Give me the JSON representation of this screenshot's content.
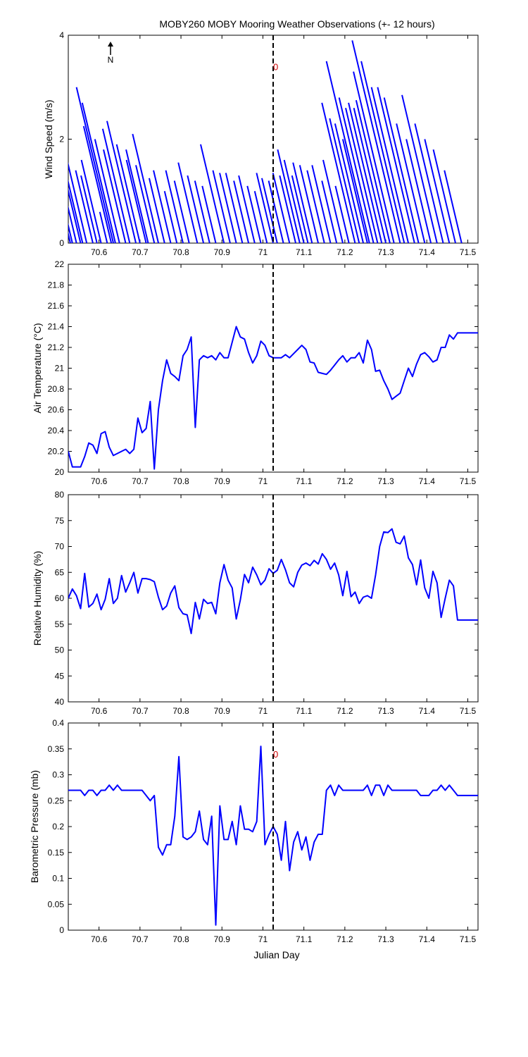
{
  "figure": {
    "title": "MOBY260 MOBY Mooring Weather Observations (+- 12 hours)",
    "xlabel": "Julian Day",
    "center_day": 71.025,
    "marker_label": "0",
    "north_label": "N",
    "colors": {
      "line": "#0000ff",
      "axis": "#000000",
      "marker": "#000000",
      "marker_label": "#cc0000"
    }
  },
  "chart_data": [
    {
      "type": "line",
      "subtype": "wind-vector-sticks",
      "ylabel": "Wind Speed (m/s)",
      "xlim": [
        70.525,
        71.525
      ],
      "ylim": [
        0,
        4
      ],
      "xticks": [
        "70.6",
        "70.7",
        "70.8",
        "70.9",
        "71",
        "71.1",
        "71.2",
        "71.3",
        "71.4",
        "71.5"
      ],
      "yticks": [
        "0",
        "2",
        "4"
      ],
      "show_marker_label": true,
      "marker_label_value": 3.4,
      "stick_dx_days": 0.075,
      "sticks": [
        {
          "x": 70.53,
          "speed": 0.9
        },
        {
          "x": 70.535,
          "speed": 0.5
        },
        {
          "x": 70.545,
          "speed": 1.2
        },
        {
          "x": 70.555,
          "speed": 1.8
        },
        {
          "x": 70.56,
          "speed": 1.75
        },
        {
          "x": 70.57,
          "speed": 1.78
        },
        {
          "x": 70.585,
          "speed": 1.4
        },
        {
          "x": 70.595,
          "speed": 1.3
        },
        {
          "x": 70.605,
          "speed": 1.6
        },
        {
          "x": 70.62,
          "speed": 0.6
        },
        {
          "x": 70.63,
          "speed": 2.25
        },
        {
          "x": 70.635,
          "speed": 3.0
        },
        {
          "x": 70.64,
          "speed": 2.7
        },
        {
          "x": 70.65,
          "speed": 2.0
        },
        {
          "x": 70.665,
          "speed": 1.8
        },
        {
          "x": 70.675,
          "speed": 2.2
        },
        {
          "x": 70.69,
          "speed": 2.35
        },
        {
          "x": 70.7,
          "speed": 1.9
        },
        {
          "x": 70.715,
          "speed": 1.6
        },
        {
          "x": 70.72,
          "speed": 1.8
        },
        {
          "x": 70.735,
          "speed": 1.5
        },
        {
          "x": 70.745,
          "speed": 2.1
        },
        {
          "x": 70.76,
          "speed": 1.25
        },
        {
          "x": 70.775,
          "speed": 1.4
        },
        {
          "x": 70.79,
          "speed": 1.0
        },
        {
          "x": 70.805,
          "speed": 1.4
        },
        {
          "x": 70.82,
          "speed": 1.2
        },
        {
          "x": 70.84,
          "speed": 1.55
        },
        {
          "x": 70.855,
          "speed": 1.3
        },
        {
          "x": 70.87,
          "speed": 1.2
        },
        {
          "x": 70.885,
          "speed": 1.1
        },
        {
          "x": 70.905,
          "speed": 1.9
        },
        {
          "x": 70.92,
          "speed": 1.4
        },
        {
          "x": 70.935,
          "speed": 1.35
        },
        {
          "x": 70.95,
          "speed": 1.35
        },
        {
          "x": 70.965,
          "speed": 1.2
        },
        {
          "x": 70.98,
          "speed": 1.3
        },
        {
          "x": 70.995,
          "speed": 1.1
        },
        {
          "x": 71.01,
          "speed": 1.0
        },
        {
          "x": 71.025,
          "speed": 1.35
        },
        {
          "x": 71.035,
          "speed": 1.25
        },
        {
          "x": 71.05,
          "speed": 1.2
        },
        {
          "x": 71.065,
          "speed": 1.35
        },
        {
          "x": 71.08,
          "speed": 1.3
        },
        {
          "x": 71.09,
          "speed": 1.8
        },
        {
          "x": 71.1,
          "speed": 1.6
        },
        {
          "x": 71.11,
          "speed": 1.3
        },
        {
          "x": 71.12,
          "speed": 1.55
        },
        {
          "x": 71.135,
          "speed": 1.5
        },
        {
          "x": 71.15,
          "speed": 1.4
        },
        {
          "x": 71.165,
          "speed": 1.5
        },
        {
          "x": 71.18,
          "speed": 1.2
        },
        {
          "x": 71.195,
          "speed": 1.6
        },
        {
          "x": 71.21,
          "speed": 1.1
        },
        {
          "x": 71.225,
          "speed": 2.7
        },
        {
          "x": 71.235,
          "speed": 2.4
        },
        {
          "x": 71.245,
          "speed": 2.3
        },
        {
          "x": 71.255,
          "speed": 2.0
        },
        {
          "x": 71.26,
          "speed": 3.5
        },
        {
          "x": 71.27,
          "speed": 2.8
        },
        {
          "x": 71.28,
          "speed": 2.6
        },
        {
          "x": 71.29,
          "speed": 2.7
        },
        {
          "x": 71.3,
          "speed": 2.6
        },
        {
          "x": 71.31,
          "speed": 2.75
        },
        {
          "x": 71.32,
          "speed": 3.3
        },
        {
          "x": 71.335,
          "speed": 3.9
        },
        {
          "x": 71.345,
          "speed": 3.5
        },
        {
          "x": 71.355,
          "speed": 3.0
        },
        {
          "x": 71.37,
          "speed": 3.0
        },
        {
          "x": 71.38,
          "speed": 2.8
        },
        {
          "x": 71.395,
          "speed": 2.3
        },
        {
          "x": 71.41,
          "speed": 2.0
        },
        {
          "x": 71.425,
          "speed": 2.85
        },
        {
          "x": 71.44,
          "speed": 2.3
        },
        {
          "x": 71.455,
          "speed": 2.0
        },
        {
          "x": 71.47,
          "speed": 1.8
        },
        {
          "x": 71.485,
          "speed": 1.4
        }
      ]
    },
    {
      "type": "line",
      "ylabel": "Air Temperature (°C)",
      "xlim": [
        70.525,
        71.525
      ],
      "ylim": [
        20,
        22
      ],
      "xticks": [
        "70.6",
        "70.7",
        "70.8",
        "70.9",
        "71",
        "71.1",
        "71.2",
        "71.3",
        "71.4",
        "71.5"
      ],
      "yticks": [
        "20",
        "20.2",
        "20.4",
        "20.6",
        "20.8",
        "21",
        "21.2",
        "21.4",
        "21.6",
        "21.8",
        "22"
      ],
      "show_marker_label": false,
      "x": [
        70.525,
        70.535,
        70.545,
        70.555,
        70.565,
        70.575,
        70.585,
        70.595,
        70.605,
        70.615,
        70.625,
        70.635,
        70.645,
        70.655,
        70.665,
        70.675,
        70.685,
        70.695,
        70.705,
        70.715,
        70.725,
        70.735,
        70.745,
        70.755,
        70.765,
        70.775,
        70.785,
        70.795,
        70.805,
        70.815,
        70.825,
        70.835,
        70.845,
        70.855,
        70.865,
        70.875,
        70.885,
        70.895,
        70.905,
        70.915,
        70.925,
        70.935,
        70.945,
        70.955,
        70.965,
        70.975,
        70.985,
        70.995,
        71.005,
        71.015,
        71.025,
        71.035,
        71.045,
        71.055,
        71.065,
        71.075,
        71.085,
        71.095,
        71.105,
        71.115,
        71.125,
        71.135,
        71.145,
        71.155,
        71.165,
        71.175,
        71.185,
        71.195,
        71.205,
        71.215,
        71.225,
        71.235,
        71.245,
        71.255,
        71.265,
        71.275,
        71.285,
        71.295,
        71.305,
        71.315,
        71.325,
        71.335,
        71.345,
        71.355,
        71.365,
        71.375,
        71.385,
        71.395,
        71.405,
        71.415,
        71.425,
        71.435,
        71.445,
        71.455,
        71.465,
        71.475,
        71.485,
        71.495,
        71.505,
        71.515,
        71.525
      ],
      "y": [
        20.2,
        20.05,
        20.05,
        20.05,
        20.15,
        20.28,
        20.26,
        20.18,
        20.37,
        20.39,
        20.24,
        20.16,
        20.18,
        20.2,
        20.22,
        20.18,
        20.22,
        20.52,
        20.38,
        20.42,
        20.68,
        20.03,
        20.6,
        20.88,
        21.08,
        20.95,
        20.92,
        20.88,
        21.12,
        21.18,
        21.3,
        20.43,
        21.08,
        21.12,
        21.1,
        21.12,
        21.08,
        21.15,
        21.1,
        21.1,
        21.25,
        21.4,
        21.3,
        21.28,
        21.15,
        21.05,
        21.12,
        21.26,
        21.22,
        21.12,
        21.1,
        21.1,
        21.1,
        21.13,
        21.1,
        21.14,
        21.18,
        21.22,
        21.18,
        21.06,
        21.05,
        20.96,
        20.95,
        20.94,
        20.98,
        21.03,
        21.08,
        21.12,
        21.06,
        21.1,
        21.1,
        21.15,
        21.05,
        21.27,
        21.18,
        20.97,
        20.98,
        20.88,
        20.8,
        20.7,
        20.73,
        20.76,
        20.88,
        21.0,
        20.92,
        21.04,
        21.13,
        21.15,
        21.11,
        21.06,
        21.08,
        21.2,
        21.2,
        21.32,
        21.28,
        21.34,
        21.34,
        21.34,
        21.34,
        21.34,
        21.34
      ]
    },
    {
      "type": "line",
      "ylabel": "Relative Humidity (%)",
      "xlim": [
        70.525,
        71.525
      ],
      "ylim": [
        40,
        80
      ],
      "xticks": [
        "70.6",
        "70.7",
        "70.8",
        "70.9",
        "71",
        "71.1",
        "71.2",
        "71.3",
        "71.4",
        "71.5"
      ],
      "yticks": [
        "40",
        "45",
        "50",
        "55",
        "60",
        "65",
        "70",
        "75",
        "80"
      ],
      "show_marker_label": false,
      "x": [
        70.525,
        70.535,
        70.545,
        70.555,
        70.565,
        70.575,
        70.585,
        70.595,
        70.605,
        70.615,
        70.625,
        70.635,
        70.645,
        70.655,
        70.665,
        70.675,
        70.685,
        70.695,
        70.705,
        70.715,
        70.725,
        70.735,
        70.745,
        70.755,
        70.765,
        70.775,
        70.785,
        70.795,
        70.805,
        70.815,
        70.825,
        70.835,
        70.845,
        70.855,
        70.865,
        70.875,
        70.885,
        70.895,
        70.905,
        70.915,
        70.925,
        70.935,
        70.945,
        70.955,
        70.965,
        70.975,
        70.985,
        70.995,
        71.005,
        71.015,
        71.025,
        71.035,
        71.045,
        71.055,
        71.065,
        71.075,
        71.085,
        71.095,
        71.105,
        71.115,
        71.125,
        71.135,
        71.145,
        71.155,
        71.165,
        71.175,
        71.185,
        71.195,
        71.205,
        71.215,
        71.225,
        71.235,
        71.245,
        71.255,
        71.265,
        71.275,
        71.285,
        71.295,
        71.305,
        71.315,
        71.325,
        71.335,
        71.345,
        71.355,
        71.365,
        71.375,
        71.385,
        71.395,
        71.405,
        71.415,
        71.425,
        71.435,
        71.445,
        71.455,
        71.465,
        71.475,
        71.485,
        71.495,
        71.505,
        71.515,
        71.525
      ],
      "y": [
        60,
        61.8,
        60.5,
        58,
        64.8,
        58.3,
        59,
        60.8,
        57.8,
        59.8,
        63.8,
        59,
        60,
        64.4,
        61.2,
        63,
        65,
        61,
        63.8,
        63.8,
        63.6,
        63.2,
        60.2,
        57.8,
        58.5,
        61,
        62.4,
        58.2,
        57,
        56.8,
        53.2,
        59.2,
        56,
        59.8,
        59,
        59.2,
        57,
        63,
        66.5,
        63.5,
        62,
        56,
        59.7,
        64.6,
        63,
        66,
        64.5,
        62.6,
        63.5,
        65.7,
        64.8,
        65.4,
        67.5,
        65.5,
        63,
        62.2,
        65,
        66.4,
        66.8,
        66.3,
        67.3,
        66.6,
        68.6,
        67.5,
        65.6,
        66.8,
        64.5,
        60.5,
        65.2,
        60.3,
        61.2,
        59,
        60.2,
        60.5,
        60,
        64.5,
        70,
        72.8,
        72.7,
        73.4,
        70.8,
        70.5,
        72,
        67.8,
        66.5,
        62.6,
        67.4,
        62,
        60,
        65.2,
        63,
        56.3,
        60,
        63.5,
        62.4,
        55.8,
        55.8,
        55.8,
        55.8,
        55.8,
        55.8
      ]
    },
    {
      "type": "line",
      "ylabel": "Barometric Pressure (mb)",
      "xlim": [
        70.525,
        71.525
      ],
      "ylim": [
        0,
        0.4
      ],
      "xticks": [
        "70.6",
        "70.7",
        "70.8",
        "70.9",
        "71",
        "71.1",
        "71.2",
        "71.3",
        "71.4",
        "71.5"
      ],
      "yticks": [
        "0",
        "0.05",
        "0.1",
        "0.15",
        "0.2",
        "0.25",
        "0.3",
        "0.35",
        "0.4"
      ],
      "show_marker_label": true,
      "marker_label_value": 0.34,
      "x": [
        70.525,
        70.535,
        70.545,
        70.555,
        70.565,
        70.575,
        70.585,
        70.595,
        70.605,
        70.615,
        70.625,
        70.635,
        70.645,
        70.655,
        70.665,
        70.675,
        70.685,
        70.695,
        70.705,
        70.715,
        70.725,
        70.735,
        70.745,
        70.755,
        70.765,
        70.775,
        70.785,
        70.795,
        70.805,
        70.815,
        70.825,
        70.835,
        70.845,
        70.855,
        70.865,
        70.875,
        70.885,
        70.895,
        70.905,
        70.915,
        70.925,
        70.935,
        70.945,
        70.955,
        70.965,
        70.975,
        70.985,
        70.995,
        71.005,
        71.015,
        71.025,
        71.035,
        71.045,
        71.055,
        71.065,
        71.075,
        71.085,
        71.095,
        71.105,
        71.115,
        71.125,
        71.135,
        71.145,
        71.155,
        71.165,
        71.175,
        71.185,
        71.195,
        71.205,
        71.215,
        71.225,
        71.235,
        71.245,
        71.255,
        71.265,
        71.275,
        71.285,
        71.295,
        71.305,
        71.315,
        71.325,
        71.335,
        71.345,
        71.355,
        71.365,
        71.375,
        71.385,
        71.395,
        71.405,
        71.415,
        71.425,
        71.435,
        71.445,
        71.455,
        71.465,
        71.475,
        71.485,
        71.495,
        71.505,
        71.515,
        71.525
      ],
      "y": [
        0.27,
        0.27,
        0.27,
        0.27,
        0.26,
        0.27,
        0.27,
        0.26,
        0.27,
        0.27,
        0.28,
        0.27,
        0.28,
        0.27,
        0.27,
        0.27,
        0.27,
        0.27,
        0.27,
        0.26,
        0.25,
        0.26,
        0.16,
        0.145,
        0.165,
        0.165,
        0.22,
        0.335,
        0.18,
        0.175,
        0.18,
        0.19,
        0.23,
        0.175,
        0.165,
        0.22,
        0.01,
        0.24,
        0.175,
        0.175,
        0.21,
        0.165,
        0.24,
        0.195,
        0.195,
        0.19,
        0.21,
        0.355,
        0.165,
        0.185,
        0.2,
        0.185,
        0.135,
        0.21,
        0.115,
        0.17,
        0.19,
        0.155,
        0.18,
        0.135,
        0.17,
        0.185,
        0.185,
        0.27,
        0.28,
        0.26,
        0.28,
        0.27,
        0.27,
        0.27,
        0.27,
        0.27,
        0.27,
        0.28,
        0.26,
        0.28,
        0.28,
        0.26,
        0.28,
        0.27,
        0.27,
        0.27,
        0.27,
        0.27,
        0.27,
        0.27,
        0.26,
        0.26,
        0.26,
        0.27,
        0.27,
        0.28,
        0.27,
        0.28,
        0.27,
        0.26,
        0.26,
        0.26,
        0.26,
        0.26,
        0.26
      ]
    }
  ]
}
